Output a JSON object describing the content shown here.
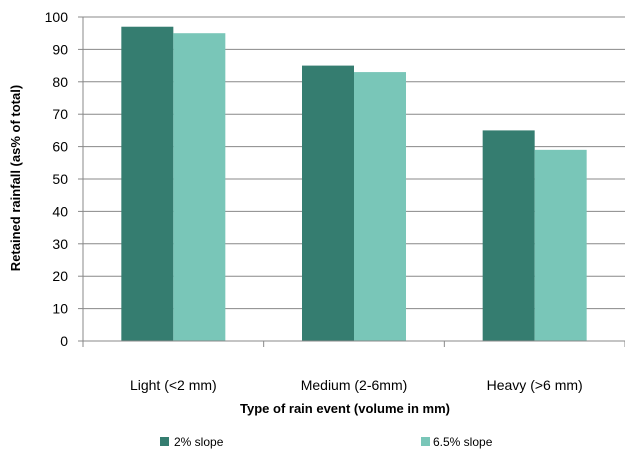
{
  "chart_data": {
    "type": "bar",
    "categories": [
      "Light (<2 mm)",
      "Medium (2-6mm)",
      "Heavy (>6 mm)"
    ],
    "series": [
      {
        "name": "2% slope",
        "values": [
          97,
          85,
          65
        ],
        "color": "#357d70"
      },
      {
        "name": "6.5% slope",
        "values": [
          95,
          83,
          59
        ],
        "color": "#79c6b8"
      }
    ],
    "xlabel": "Type of rain event (volume in mm)",
    "ylabel": "Retained rainfall (as% of total)",
    "ylim": [
      0,
      100
    ],
    "yticks": [
      0,
      10,
      20,
      30,
      40,
      50,
      60,
      70,
      80,
      90,
      100
    ],
    "grid": true,
    "gridColor": "#888888",
    "legend": "bottom"
  }
}
